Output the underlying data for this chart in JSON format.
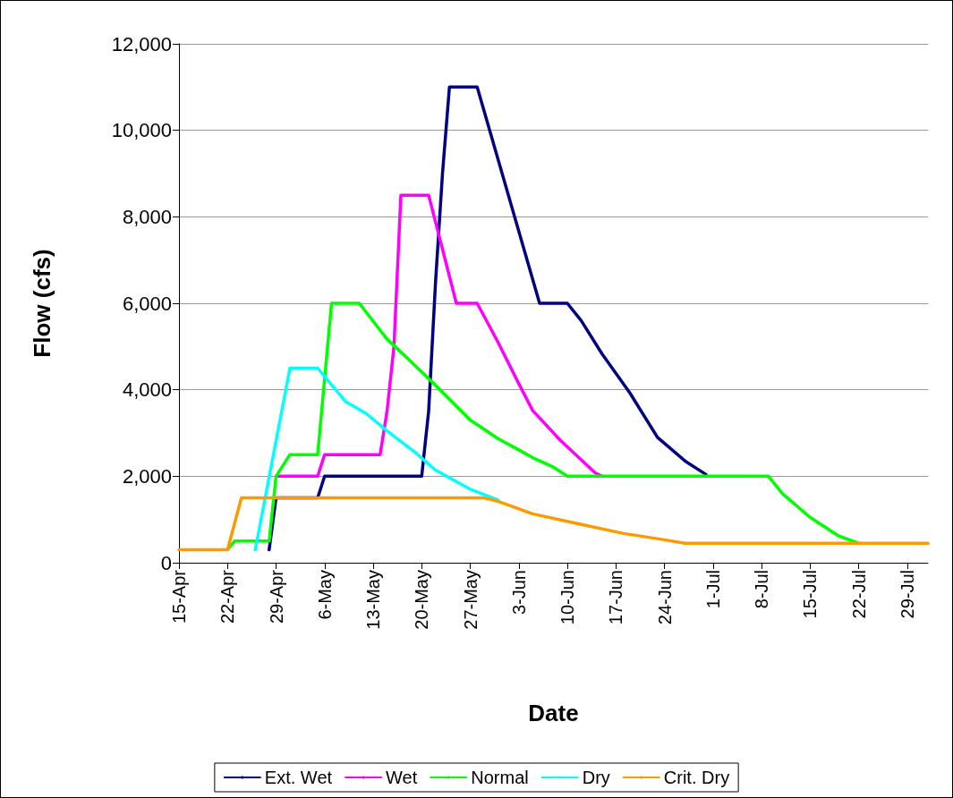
{
  "chart_data": {
    "type": "line",
    "xlabel": "Date",
    "ylabel": "Flow (cfs)",
    "xlim": [
      "--04-15",
      "--08-01"
    ],
    "xticks": [
      {
        "value": "--04-15",
        "label": "15-Apr"
      },
      {
        "value": "--04-22",
        "label": "22-Apr"
      },
      {
        "value": "--04-29",
        "label": "29-Apr"
      },
      {
        "value": "--05-06",
        "label": "6-May"
      },
      {
        "value": "--05-13",
        "label": "13-May"
      },
      {
        "value": "--05-20",
        "label": "20-May"
      },
      {
        "value": "--05-27",
        "label": "27-May"
      },
      {
        "value": "--06-03",
        "label": "3-Jun"
      },
      {
        "value": "--06-10",
        "label": "10-Jun"
      },
      {
        "value": "--06-17",
        "label": "17-Jun"
      },
      {
        "value": "--06-24",
        "label": "24-Jun"
      },
      {
        "value": "--07-01",
        "label": "1-Jul"
      },
      {
        "value": "--07-08",
        "label": "8-Jul"
      },
      {
        "value": "--07-15",
        "label": "15-Jul"
      },
      {
        "value": "--07-22",
        "label": "22-Jul"
      },
      {
        "value": "--07-29",
        "label": "29-Jul"
      }
    ],
    "ylim": [
      0,
      12000
    ],
    "yticks": [
      0,
      {
        "value": 2000,
        "label": "2,000"
      },
      {
        "value": 4000,
        "label": "4,000"
      },
      {
        "value": 6000,
        "label": "6,000"
      },
      {
        "value": 8000,
        "label": "8,000"
      },
      {
        "value": 10000,
        "label": "10,000"
      },
      {
        "value": 12000,
        "label": "12,000"
      }
    ],
    "grid": "y",
    "legend": "bottom",
    "marker": "none",
    "line_style": "solid",
    "series": [
      {
        "name": "Ext. Wet",
        "color": "#000080",
        "x": [
          "--04-28",
          "--04-29",
          "--05-05",
          "--05-06",
          "--05-20",
          "--05-21",
          "--05-22",
          "--05-23",
          "--05-24",
          "--05-28",
          "--06-06",
          "--06-10",
          "--06-12",
          "--06-15",
          "--06-19",
          "--06-23",
          "--06-27",
          "--06-30"
        ],
        "values": [
          300,
          1500,
          1500,
          2000,
          2000,
          3500,
          6500,
          9000,
          11000,
          11000,
          6000,
          6000,
          5600,
          4830,
          3930,
          2900,
          2350,
          2040
        ]
      },
      {
        "name": "Wet",
        "color": "#ff00ff",
        "x": [
          "--04-29",
          "--05-05",
          "--05-06",
          "--05-14",
          "--05-15",
          "--05-16",
          "--05-17",
          "--05-21",
          "--05-25",
          "--05-28",
          "--05-31",
          "--06-03",
          "--06-05",
          "--06-09",
          "--06-14",
          "--06-15"
        ],
        "values": [
          2000,
          2000,
          2500,
          2500,
          3500,
          5000,
          8500,
          8500,
          6000,
          6000,
          5100,
          4140,
          3520,
          2830,
          2080,
          2000
        ]
      },
      {
        "name": "Normal",
        "color": "#00ff00",
        "x": [
          "--04-22",
          "--04-23",
          "--04-28",
          "--04-29",
          "--05-01",
          "--05-05",
          "--05-07",
          "--05-11",
          "--05-15",
          "--05-18",
          "--05-22",
          "--05-27",
          "--05-31",
          "--06-03",
          "--06-05",
          "--06-08",
          "--06-10",
          "--07-09",
          "--07-11",
          "--07-15",
          "--07-19",
          "--07-22"
        ],
        "values": [
          300,
          500,
          500,
          2000,
          2500,
          2500,
          6000,
          6000,
          5170,
          4720,
          4100,
          3300,
          2870,
          2610,
          2430,
          2210,
          2000,
          2000,
          1600,
          1050,
          630,
          450
        ]
      },
      {
        "name": "Dry",
        "color": "#00ffff",
        "x": [
          "--04-26",
          "--05-01",
          "--05-05",
          "--05-09",
          "--05-12",
          "--05-15",
          "--05-19",
          "--05-22",
          "--05-27",
          "--05-31"
        ],
        "values": [
          300,
          4500,
          4500,
          3730,
          3450,
          3050,
          2560,
          2140,
          1700,
          1450
        ]
      },
      {
        "name": "Crit. Dry",
        "color": "#ff9900",
        "x": [
          "--04-15",
          "--04-22",
          "--04-24",
          "--05-29",
          "--05-31",
          "--06-05",
          "--06-11",
          "--06-18",
          "--06-24",
          "--06-27",
          "--08-01"
        ],
        "values": [
          300,
          300,
          1500,
          1500,
          1420,
          1130,
          920,
          680,
          530,
          450,
          450
        ]
      }
    ]
  }
}
